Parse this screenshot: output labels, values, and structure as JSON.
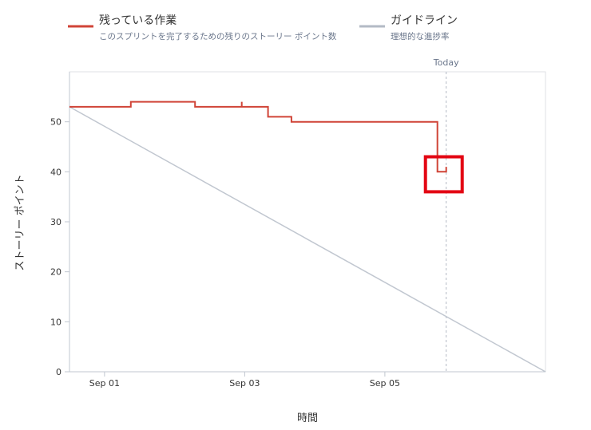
{
  "legend": {
    "remaining": {
      "title": "残っている作業",
      "subtitle": "このスプリントを完了するための残りのストーリー ポイント数",
      "color": "#d04437"
    },
    "guideline": {
      "title": "ガイドライン",
      "subtitle": "理想的な進捗率",
      "color": "#b3bac5"
    }
  },
  "today_label": "Today",
  "highlight_color": "#e30613",
  "chart_data": {
    "type": "line",
    "xlabel": "時間",
    "ylabel": "ストーリー ポイント",
    "ylim": [
      0,
      60
    ],
    "xlim": [
      "2023-08-31T12:00",
      "2023-09-07T07:00"
    ],
    "yticks": [
      0,
      10,
      20,
      30,
      40,
      50
    ],
    "xticks": [
      {
        "label": "Sep 01",
        "x": "2023-09-01T00:00"
      },
      {
        "label": "Sep 03",
        "x": "2023-09-03T00:00"
      },
      {
        "label": "Sep 05",
        "x": "2023-09-05T00:00"
      }
    ],
    "today": "2023-09-05T21:00",
    "grid": false,
    "legend_position": "top",
    "series": [
      {
        "name": "残っている作業",
        "color": "#d04437",
        "step": true,
        "points": [
          [
            "2023-08-31T12:00",
            53
          ],
          [
            "2023-09-01T09:00",
            53
          ],
          [
            "2023-09-01T09:00",
            54
          ],
          [
            "2023-09-02T07:00",
            54
          ],
          [
            "2023-09-02T07:00",
            53
          ],
          [
            "2023-09-02T23:00",
            53
          ],
          [
            "2023-09-02T23:00",
            54
          ],
          [
            "2023-09-02T23:00",
            53
          ],
          [
            "2023-09-03T08:00",
            53
          ],
          [
            "2023-09-03T08:00",
            51
          ],
          [
            "2023-09-03T16:00",
            51
          ],
          [
            "2023-09-03T16:00",
            50
          ],
          [
            "2023-09-05T18:00",
            50
          ],
          [
            "2023-09-05T18:00",
            40
          ],
          [
            "2023-09-05T21:00",
            40
          ],
          [
            "2023-09-05T21:00",
            41
          ]
        ]
      },
      {
        "name": "ガイドライン",
        "color": "#c1c7d0",
        "step": false,
        "points": [
          [
            "2023-08-31T12:00",
            53
          ],
          [
            "2023-09-07T07:00",
            0
          ]
        ]
      }
    ]
  }
}
